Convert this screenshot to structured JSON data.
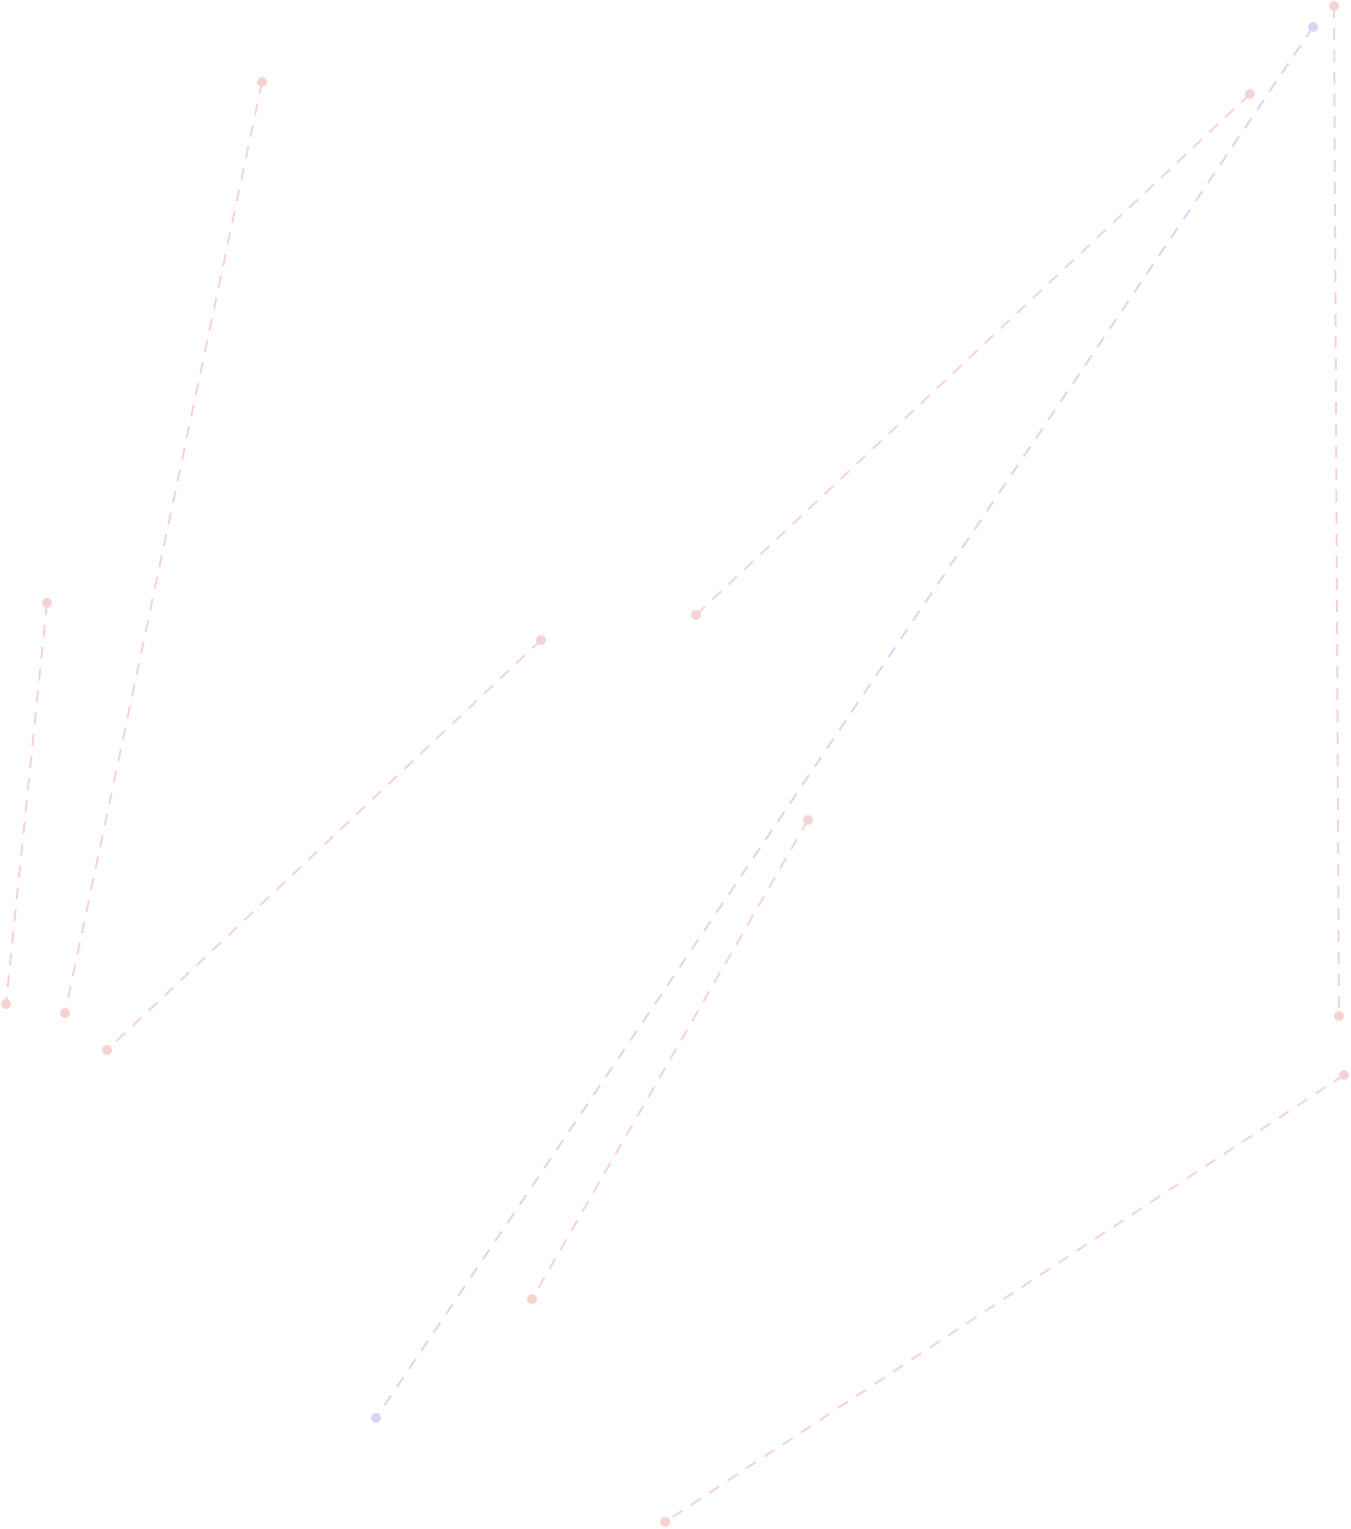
{
  "colors": {
    "background": "#ffffff",
    "pink": "#f6d3d3",
    "lavender": "#d8d5f6"
  },
  "connectors": [
    {
      "name": "connector-pink-1",
      "color": "pink"
    },
    {
      "name": "connector-pink-2",
      "color": "pink"
    },
    {
      "name": "connector-pink-3",
      "color": "pink"
    },
    {
      "name": "connector-pink-4",
      "color": "pink"
    },
    {
      "name": "connector-pink-5",
      "color": "pink"
    },
    {
      "name": "connector-pink-6",
      "color": "pink"
    },
    {
      "name": "connector-pink-7",
      "color": "pink"
    },
    {
      "name": "connector-lavender-1",
      "color": "lavender"
    }
  ]
}
